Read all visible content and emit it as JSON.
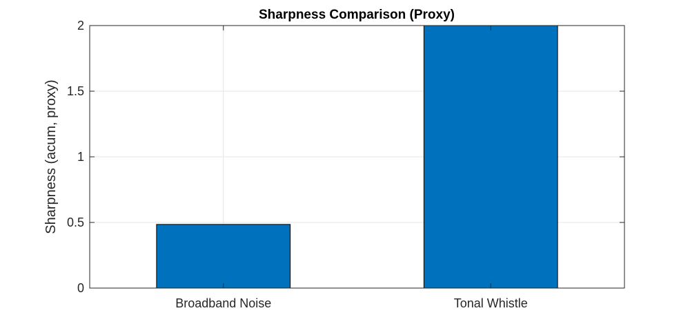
{
  "chart_data": {
    "type": "bar",
    "title": "Sharpness Comparison (Proxy)",
    "xlabel": "",
    "ylabel": "Sharpness (acum, proxy)",
    "categories": [
      "Broadband Noise",
      "Tonal Whistle"
    ],
    "values": [
      0.485,
      2.0
    ],
    "ylim": [
      0,
      2
    ],
    "yticks": [
      0,
      0.5,
      1,
      1.5,
      2
    ],
    "ytick_labels": [
      "0",
      "0.5",
      "1",
      "1.5",
      "2"
    ],
    "grid": true,
    "legend": "none",
    "colors": {
      "bar": "#0072BD",
      "bar_edge": "#000000",
      "grid": "#e6e6e6",
      "axis": "#262626"
    }
  }
}
